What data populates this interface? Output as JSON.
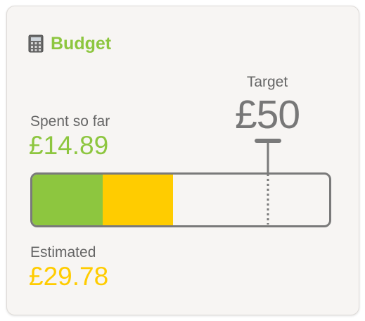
{
  "widget": {
    "title": "Budget",
    "icon": "calculator-icon",
    "accent_color": "#8dc63f",
    "estimated_color": "#ffcc00"
  },
  "target": {
    "label": "Target",
    "value": "£50",
    "amount": 50
  },
  "spent": {
    "label": "Spent so far",
    "value": "£14.89",
    "amount": 14.89
  },
  "estimated": {
    "label": "Estimated",
    "value": "£29.78",
    "amount": 29.78
  },
  "progress": {
    "spent_fraction_of_target": 0.2978,
    "estimated_fraction_of_target": 0.5956,
    "target_marker": 1.0
  }
}
